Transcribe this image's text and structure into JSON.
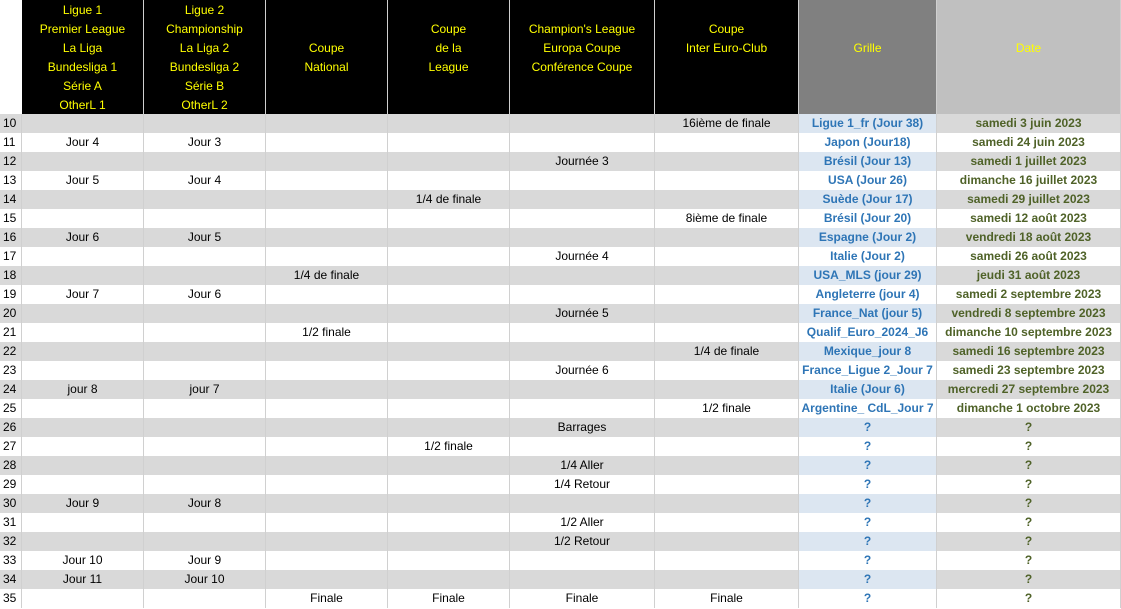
{
  "header": {
    "columns": [
      [
        "Ligue 1",
        "Premier League",
        "La Liga",
        "Bundesliga 1",
        "Série A",
        "OtherL 1"
      ],
      [
        "Ligue 2",
        "Championship",
        "La Liga 2",
        "Bundesliga 2",
        "Série B",
        "OtherL 2"
      ],
      [
        "Coupe",
        "National"
      ],
      [
        "Coupe",
        "de la",
        "League"
      ],
      [
        "Champion's League",
        "Europa Coupe",
        "Conférence Coupe"
      ],
      [
        "Coupe",
        "Inter Euro-Club"
      ],
      [
        "Grille"
      ],
      [
        "Date"
      ]
    ]
  },
  "table": {
    "rows": [
      [
        10,
        null,
        null,
        null,
        null,
        null,
        "16ième de finale",
        "Ligue 1_fr (Jour 38)",
        "samedi 3 juin 2023"
      ],
      [
        11,
        "Jour 4",
        "Jour 3",
        null,
        null,
        null,
        null,
        "Japon (Jour18)",
        "samedi 24 juin 2023"
      ],
      [
        12,
        null,
        null,
        null,
        null,
        "Journée 3",
        null,
        "Brésil (Jour 13)",
        "samedi 1 juillet 2023"
      ],
      [
        13,
        "Jour 5",
        "Jour 4",
        null,
        null,
        null,
        null,
        "USA (Jour 26)",
        "dimanche 16 juillet 2023"
      ],
      [
        14,
        null,
        null,
        null,
        "1/4 de finale",
        null,
        null,
        "Suède (Jour 17)",
        "samedi 29 juillet 2023"
      ],
      [
        15,
        null,
        null,
        null,
        null,
        null,
        "8ième de finale",
        "Brésil (Jour 20)",
        "samedi 12 août 2023"
      ],
      [
        16,
        "Jour 6",
        "Jour 5",
        null,
        null,
        null,
        null,
        "Espagne (Jour 2)",
        "vendredi 18 août 2023"
      ],
      [
        17,
        null,
        null,
        null,
        null,
        "Journée 4",
        null,
        "Italie (Jour 2)",
        "samedi 26 août 2023"
      ],
      [
        18,
        null,
        null,
        "1/4 de finale",
        null,
        null,
        null,
        "USA_MLS (jour 29)",
        "jeudi 31 août 2023"
      ],
      [
        19,
        "Jour 7",
        "Jour 6",
        null,
        null,
        null,
        null,
        "Angleterre (jour 4)",
        "samedi 2 septembre 2023"
      ],
      [
        20,
        null,
        null,
        null,
        null,
        "Journée 5",
        null,
        "France_Nat (jour 5)",
        "vendredi 8 septembre 2023"
      ],
      [
        21,
        null,
        null,
        "1/2 finale",
        null,
        null,
        null,
        "Qualif_Euro_2024_J6",
        "dimanche 10 septembre 2023"
      ],
      [
        22,
        null,
        null,
        null,
        null,
        null,
        "1/4 de finale",
        "Mexique_jour 8",
        "samedi 16 septembre 2023"
      ],
      [
        23,
        null,
        null,
        null,
        null,
        "Journée 6",
        null,
        "France_Ligue 2_Jour 7",
        "samedi 23 septembre 2023"
      ],
      [
        24,
        "jour 8",
        "jour 7",
        null,
        null,
        null,
        null,
        "Italie (Jour 6)",
        "mercredi 27 septembre 2023"
      ],
      [
        25,
        null,
        null,
        null,
        null,
        null,
        "1/2 finale",
        "Argentine_ CdL_Jour 7",
        "dimanche 1 octobre 2023"
      ],
      [
        26,
        null,
        null,
        null,
        null,
        "Barrages",
        null,
        "?",
        "?"
      ],
      [
        27,
        null,
        null,
        null,
        "1/2 finale",
        null,
        null,
        "?",
        "?"
      ],
      [
        28,
        null,
        null,
        null,
        null,
        "1/4 Aller",
        null,
        "?",
        "?"
      ],
      [
        29,
        null,
        null,
        null,
        null,
        "1/4 Retour",
        null,
        "?",
        "?"
      ],
      [
        30,
        "Jour 9",
        "Jour 8",
        null,
        null,
        null,
        null,
        "?",
        "?"
      ],
      [
        31,
        null,
        null,
        null,
        null,
        "1/2 Aller",
        null,
        "?",
        "?"
      ],
      [
        32,
        null,
        null,
        null,
        null,
        "1/2 Retour",
        null,
        "?",
        "?"
      ],
      [
        33,
        "Jour 10",
        "Jour 9",
        null,
        null,
        null,
        null,
        "?",
        "?"
      ],
      [
        34,
        "Jour 11",
        "Jour 10",
        null,
        null,
        null,
        null,
        "?",
        "?"
      ],
      [
        35,
        null,
        null,
        "Finale",
        "Finale",
        "Finale",
        "Finale",
        "?",
        "?"
      ]
    ]
  }
}
